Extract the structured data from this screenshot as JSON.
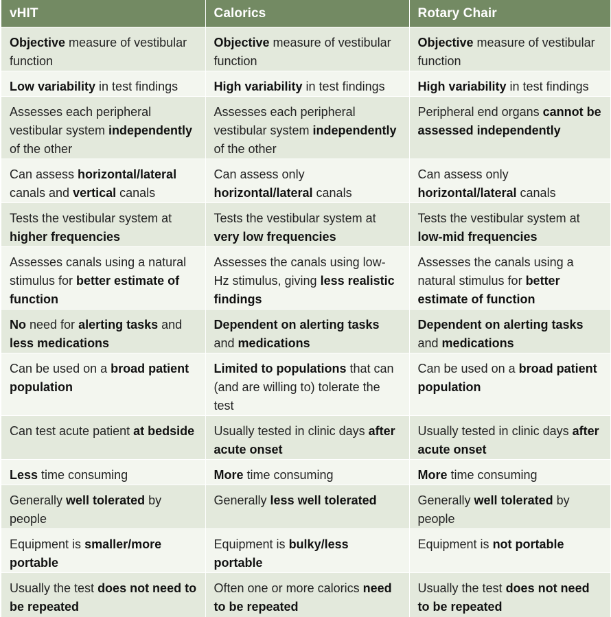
{
  "headers": [
    "vHIT",
    "Calorics",
    "Rotary Chair"
  ],
  "rows": [
    {
      "h": 64,
      "cells": [
        [
          [
            "Objective",
            true
          ],
          [
            " measure of vestibular function",
            false
          ]
        ],
        [
          [
            "Objective",
            true
          ],
          [
            " measure of vestibular function",
            false
          ]
        ],
        [
          [
            "Objective",
            true
          ],
          [
            " measure of vestibular function",
            false
          ]
        ]
      ]
    },
    {
      "h": 37,
      "cells": [
        [
          [
            "Low variability",
            true
          ],
          [
            " in test findings",
            false
          ]
        ],
        [
          [
            "High variability",
            true
          ],
          [
            " in test findings",
            false
          ]
        ],
        [
          [
            "High variability",
            true
          ],
          [
            " in test findings",
            false
          ]
        ]
      ]
    },
    {
      "h": 64,
      "cells": [
        [
          [
            "Assesses each peripheral vestibular system ",
            false
          ],
          [
            "independently",
            true
          ],
          [
            " of the other",
            false
          ]
        ],
        [
          [
            "Assesses each peripheral vestibular system ",
            false
          ],
          [
            "independently",
            true
          ],
          [
            " of the other",
            false
          ]
        ],
        [
          [
            "Peripheral end organs ",
            false
          ],
          [
            "cannot be assessed independently",
            true
          ]
        ]
      ]
    },
    {
      "h": 64,
      "cells": [
        [
          [
            "Can assess ",
            false
          ],
          [
            "horizontal/lateral",
            true
          ],
          [
            " canals and ",
            false
          ],
          [
            "vertical",
            true
          ],
          [
            " canals",
            false
          ]
        ],
        [
          [
            "Can assess only ",
            false
          ],
          [
            "horizontal/lateral",
            true
          ],
          [
            " canals",
            false
          ]
        ],
        [
          [
            "Can assess only ",
            false
          ],
          [
            "horizontal/lateral",
            true
          ],
          [
            " canals",
            false
          ]
        ]
      ]
    },
    {
      "h": 64,
      "cells": [
        [
          [
            "Tests the vestibular system at ",
            false
          ],
          [
            "higher frequencies",
            true
          ]
        ],
        [
          [
            "Tests the vestibular system at ",
            false
          ],
          [
            "very low frequencies",
            true
          ]
        ],
        [
          [
            "Tests the vestibular system at ",
            false
          ],
          [
            "low-mid frequencies",
            true
          ]
        ]
      ]
    },
    {
      "h": 91,
      "cells": [
        [
          [
            "Assesses canals using a natural stimulus for ",
            false
          ],
          [
            "better estimate of function",
            true
          ]
        ],
        [
          [
            "Assesses the canals using low-Hz stimulus, giving ",
            false
          ],
          [
            "less realistic findings",
            true
          ]
        ],
        [
          [
            "Assesses the canals using a natural stimulus for ",
            false
          ],
          [
            "better estimate of function",
            true
          ]
        ]
      ]
    },
    {
      "h": 64,
      "cells": [
        [
          [
            "No",
            true
          ],
          [
            " need for ",
            false
          ],
          [
            "alerting tasks",
            true
          ],
          [
            " and ",
            false
          ],
          [
            "less medications",
            true
          ]
        ],
        [
          [
            "Dependent on alerting tasks",
            true
          ],
          [
            " and ",
            false
          ],
          [
            "medications",
            true
          ]
        ],
        [
          [
            "Dependent on alerting tasks",
            true
          ],
          [
            " and ",
            false
          ],
          [
            "medications",
            true
          ]
        ]
      ]
    },
    {
      "h": 64,
      "cells": [
        [
          [
            "Can be used on a ",
            false
          ],
          [
            "broad patient population",
            true
          ]
        ],
        [
          [
            "Limited to populations",
            true
          ],
          [
            " that can (and are willing to) tolerate the test",
            false
          ]
        ],
        [
          [
            "Can be used on a ",
            false
          ],
          [
            "broad patient population",
            true
          ]
        ]
      ]
    },
    {
      "h": 64,
      "cells": [
        [
          [
            "Can test acute patient ",
            false
          ],
          [
            "at bedside",
            true
          ]
        ],
        [
          [
            "Usually tested in clinic days ",
            false
          ],
          [
            "after acute onset",
            true
          ]
        ],
        [
          [
            "Usually tested in clinic days ",
            false
          ],
          [
            "after acute onset",
            true
          ]
        ]
      ]
    },
    {
      "h": 37,
      "cells": [
        [
          [
            "Less",
            true
          ],
          [
            " time consuming",
            false
          ]
        ],
        [
          [
            "More",
            true
          ],
          [
            " time consuming",
            false
          ]
        ],
        [
          [
            "More",
            true
          ],
          [
            " time consuming",
            false
          ]
        ]
      ]
    },
    {
      "h": 37,
      "cells": [
        [
          [
            "Generally ",
            false
          ],
          [
            "well tolerated",
            true
          ],
          [
            " by people",
            false
          ]
        ],
        [
          [
            "Generally ",
            false
          ],
          [
            "less well tolerated",
            true
          ]
        ],
        [
          [
            "Generally ",
            false
          ],
          [
            "well tolerated",
            true
          ],
          [
            " by people",
            false
          ]
        ]
      ]
    },
    {
      "h": 37,
      "cells": [
        [
          [
            "Equipment is ",
            false
          ],
          [
            "smaller/more portable",
            true
          ]
        ],
        [
          [
            "Equipment is ",
            false
          ],
          [
            "bulky/less portable",
            true
          ]
        ],
        [
          [
            "Equipment is ",
            false
          ],
          [
            "not portable",
            true
          ]
        ]
      ]
    },
    {
      "h": 64,
      "cells": [
        [
          [
            "Usually the test ",
            false
          ],
          [
            "does not need to be repeated",
            true
          ]
        ],
        [
          [
            "Often one or more calorics ",
            false
          ],
          [
            "need to be repeated",
            true
          ]
        ],
        [
          [
            "Usually the test ",
            false
          ],
          [
            "does not need to be repeated",
            true
          ]
        ]
      ]
    }
  ]
}
